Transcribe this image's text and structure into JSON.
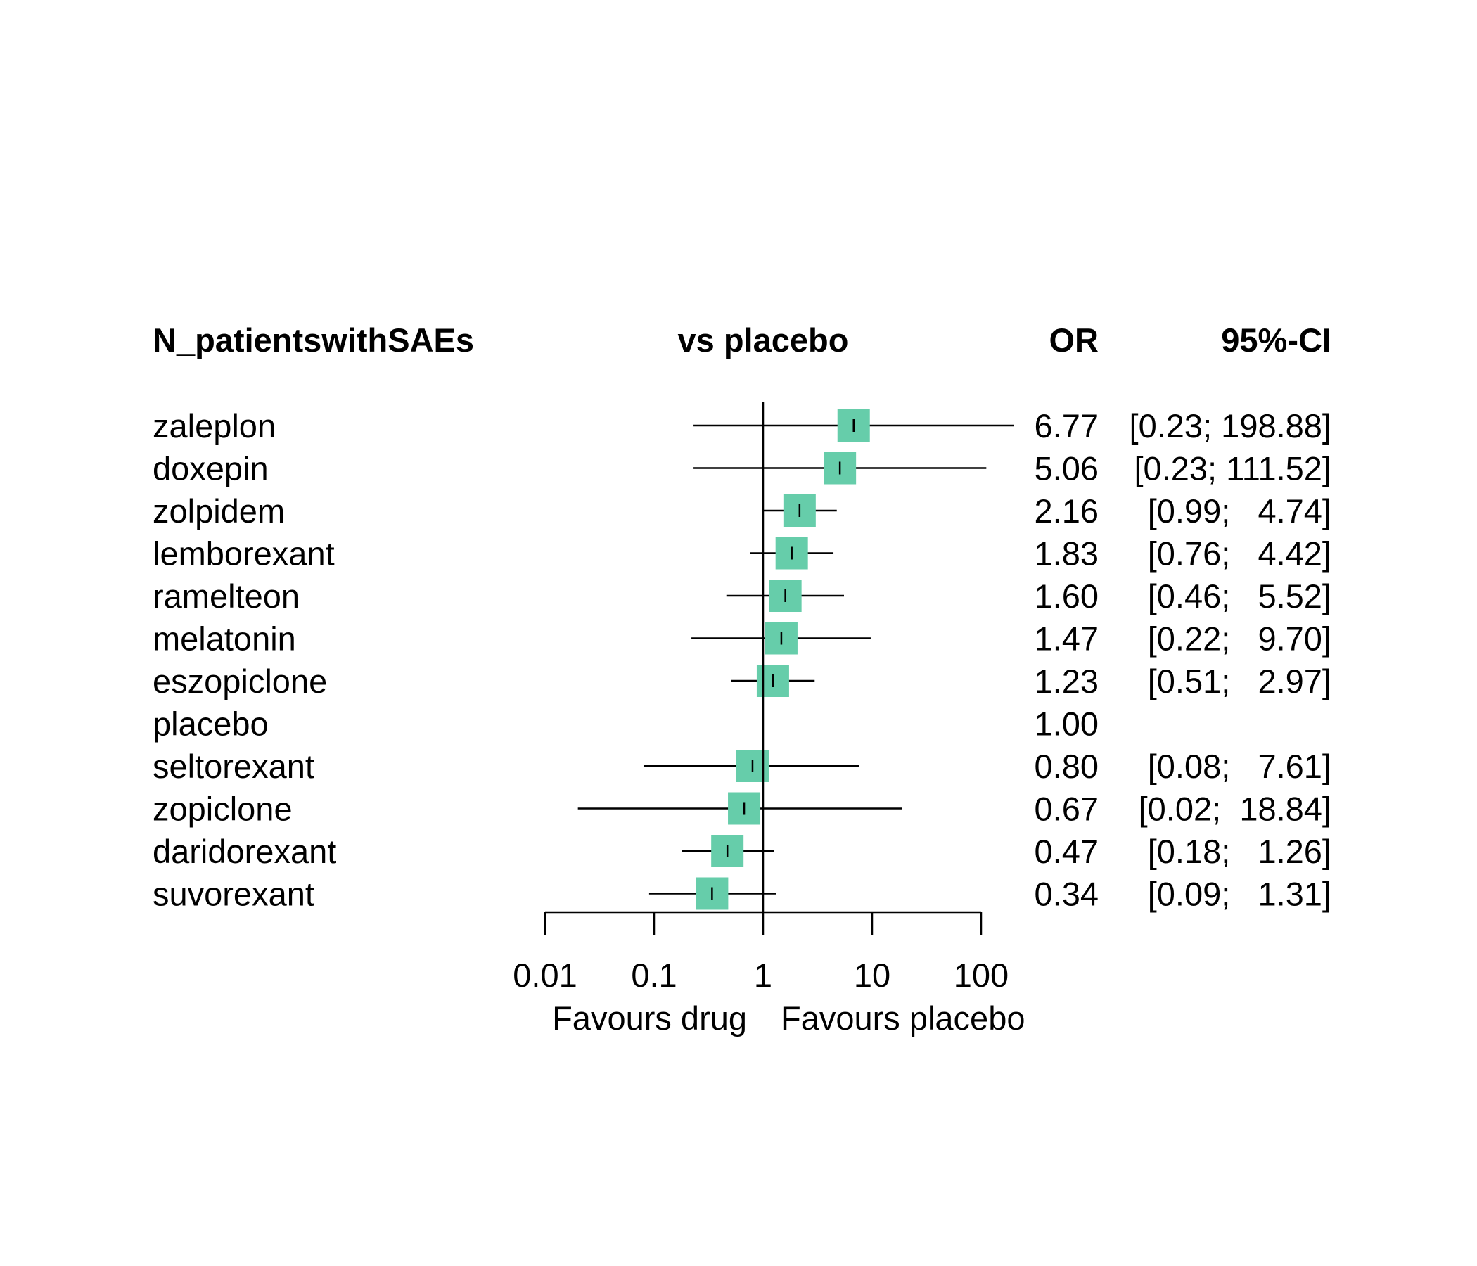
{
  "header": {
    "outcome": "N_patientswithSAEs",
    "comparison": "vs placebo",
    "or_label": "OR",
    "ci_label": "95%-CI"
  },
  "colors": {
    "box": "#66CDAA",
    "line": "#000000"
  },
  "chart_data": {
    "type": "forest",
    "xscale": "log",
    "xlim": [
      0.01,
      100
    ],
    "xticks": [
      0.01,
      0.1,
      1,
      10,
      100
    ],
    "xtick_labels": [
      "0.01",
      "0.1",
      "1",
      "10",
      "100"
    ],
    "reference_line": 1,
    "favours_left": "Favours drug",
    "favours_right": "Favours placebo",
    "rows": [
      {
        "treatment": "zaleplon",
        "or": 6.77,
        "lower": 0.23,
        "upper": 198.88,
        "or_text": "6.77",
        "ci_text": "[0.23; 198.88]"
      },
      {
        "treatment": "doxepin",
        "or": 5.06,
        "lower": 0.23,
        "upper": 111.52,
        "or_text": "5.06",
        "ci_text": "[0.23; 111.52]"
      },
      {
        "treatment": "zolpidem",
        "or": 2.16,
        "lower": 0.99,
        "upper": 4.74,
        "or_text": "2.16",
        "ci_text": "[0.99;   4.74]"
      },
      {
        "treatment": "lemborexant",
        "or": 1.83,
        "lower": 0.76,
        "upper": 4.42,
        "or_text": "1.83",
        "ci_text": "[0.76;   4.42]"
      },
      {
        "treatment": "ramelteon",
        "or": 1.6,
        "lower": 0.46,
        "upper": 5.52,
        "or_text": "1.60",
        "ci_text": "[0.46;   5.52]"
      },
      {
        "treatment": "melatonin",
        "or": 1.47,
        "lower": 0.22,
        "upper": 9.7,
        "or_text": "1.47",
        "ci_text": "[0.22;   9.70]"
      },
      {
        "treatment": "eszopiclone",
        "or": 1.23,
        "lower": 0.51,
        "upper": 2.97,
        "or_text": "1.23",
        "ci_text": "[0.51;   2.97]"
      },
      {
        "treatment": "placebo",
        "or": 1.0,
        "lower": null,
        "upper": null,
        "or_text": "1.00",
        "ci_text": ""
      },
      {
        "treatment": "seltorexant",
        "or": 0.8,
        "lower": 0.08,
        "upper": 7.61,
        "or_text": "0.80",
        "ci_text": "[0.08;   7.61]"
      },
      {
        "treatment": "zopiclone",
        "or": 0.67,
        "lower": 0.02,
        "upper": 18.84,
        "or_text": "0.67",
        "ci_text": "[0.02;  18.84]"
      },
      {
        "treatment": "daridorexant",
        "or": 0.47,
        "lower": 0.18,
        "upper": 1.26,
        "or_text": "0.47",
        "ci_text": "[0.18;   1.26]"
      },
      {
        "treatment": "suvorexant",
        "or": 0.34,
        "lower": 0.09,
        "upper": 1.31,
        "or_text": "0.34",
        "ci_text": "[0.09;   1.31]"
      }
    ]
  }
}
